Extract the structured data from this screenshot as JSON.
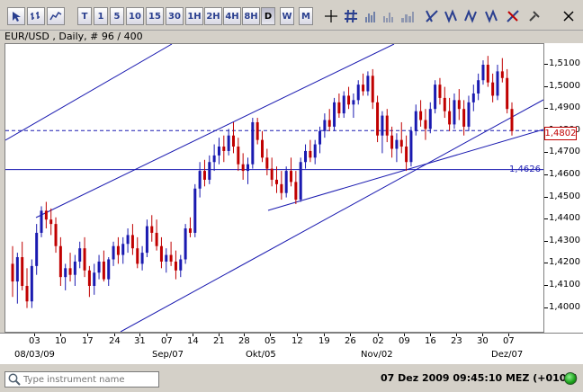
{
  "toolbar": {
    "buttons": [
      {
        "id": "cursor",
        "label": ""
      },
      {
        "id": "bar-chart",
        "label": ""
      },
      {
        "id": "candle-chart",
        "label": ""
      },
      {
        "id": "line-chart",
        "label": ""
      },
      {
        "id": "tick",
        "label": "T"
      },
      {
        "id": "m1",
        "label": "1"
      },
      {
        "id": "m5",
        "label": "5"
      },
      {
        "id": "m10",
        "label": "10"
      },
      {
        "id": "m15",
        "label": "15"
      },
      {
        "id": "m30",
        "label": "30"
      },
      {
        "id": "h1",
        "label": "1H"
      },
      {
        "id": "h2",
        "label": "2H"
      },
      {
        "id": "h4",
        "label": "4H"
      },
      {
        "id": "h8",
        "label": "8H"
      },
      {
        "id": "daily",
        "label": "D"
      },
      {
        "id": "weekly",
        "label": "W"
      },
      {
        "id": "monthly",
        "label": "M"
      }
    ]
  },
  "chart_title": "EUR/USD , Daily, # 96 / 400",
  "chart_data": {
    "type": "candlestick",
    "symbol": "EUR/USD",
    "ylim": [
      1.395,
      1.52
    ],
    "yticks": [
      "1,5100",
      "1,5000",
      "1,4900",
      "1,4800",
      "1,4700",
      "1,4600",
      "1,4500",
      "1,4400",
      "1,4300",
      "1,4200",
      "1,4100",
      "1,4000"
    ],
    "ytick_values": [
      1.51,
      1.5,
      1.49,
      1.48,
      1.47,
      1.46,
      1.45,
      1.44,
      1.43,
      1.42,
      1.41,
      1.4
    ],
    "xticks_top": [
      "03",
      "10",
      "17",
      "24",
      "31",
      "07",
      "14",
      "21",
      "28",
      "05",
      "12",
      "19",
      "26",
      "02",
      "09",
      "16",
      "23",
      "30",
      "07"
    ],
    "xticks_bottom": [
      "08/03/09",
      "Sep/07",
      "Okt/05",
      "Nov/02",
      "Dez/07"
    ],
    "current_price": "1,4802",
    "current_price_value": 1.4802,
    "horizontal_line_label": "1,4626",
    "horizontal_line_value": 1.4626,
    "candles": [
      [
        1.42,
        1.428,
        1.405,
        1.412
      ],
      [
        1.412,
        1.425,
        1.402,
        1.423
      ],
      [
        1.423,
        1.43,
        1.408,
        1.41
      ],
      [
        1.41,
        1.418,
        1.4,
        1.403
      ],
      [
        1.403,
        1.422,
        1.4,
        1.419
      ],
      [
        1.419,
        1.438,
        1.415,
        1.434
      ],
      [
        1.434,
        1.446,
        1.432,
        1.444
      ],
      [
        1.444,
        1.448,
        1.436,
        1.44
      ],
      [
        1.44,
        1.445,
        1.433,
        1.438
      ],
      [
        1.438,
        1.441,
        1.425,
        1.428
      ],
      [
        1.428,
        1.432,
        1.41,
        1.414
      ],
      [
        1.414,
        1.42,
        1.408,
        1.418
      ],
      [
        1.418,
        1.425,
        1.412,
        1.415
      ],
      [
        1.415,
        1.424,
        1.41,
        1.421
      ],
      [
        1.421,
        1.43,
        1.418,
        1.427
      ],
      [
        1.427,
        1.432,
        1.414,
        1.417
      ],
      [
        1.417,
        1.419,
        1.405,
        1.41
      ],
      [
        1.41,
        1.42,
        1.406,
        1.416
      ],
      [
        1.416,
        1.424,
        1.413,
        1.421
      ],
      [
        1.421,
        1.426,
        1.412,
        1.413
      ],
      [
        1.413,
        1.423,
        1.41,
        1.422
      ],
      [
        1.422,
        1.43,
        1.419,
        1.428
      ],
      [
        1.428,
        1.432,
        1.42,
        1.424
      ],
      [
        1.424,
        1.432,
        1.42,
        1.429
      ],
      [
        1.429,
        1.436,
        1.425,
        1.433
      ],
      [
        1.433,
        1.438,
        1.424,
        1.427
      ],
      [
        1.427,
        1.432,
        1.418,
        1.42
      ],
      [
        1.42,
        1.428,
        1.417,
        1.425
      ],
      [
        1.425,
        1.44,
        1.423,
        1.437
      ],
      [
        1.437,
        1.442,
        1.43,
        1.434
      ],
      [
        1.434,
        1.44,
        1.426,
        1.428
      ],
      [
        1.428,
        1.432,
        1.418,
        1.421
      ],
      [
        1.421,
        1.427,
        1.416,
        1.424
      ],
      [
        1.424,
        1.43,
        1.419,
        1.421
      ],
      [
        1.421,
        1.426,
        1.413,
        1.417
      ],
      [
        1.417,
        1.424,
        1.414,
        1.422
      ],
      [
        1.422,
        1.438,
        1.42,
        1.436
      ],
      [
        1.436,
        1.441,
        1.432,
        1.434
      ],
      [
        1.434,
        1.456,
        1.432,
        1.454
      ],
      [
        1.454,
        1.466,
        1.45,
        1.462
      ],
      [
        1.462,
        1.467,
        1.455,
        1.458
      ],
      [
        1.458,
        1.469,
        1.456,
        1.466
      ],
      [
        1.466,
        1.474,
        1.462,
        1.469
      ],
      [
        1.469,
        1.477,
        1.465,
        1.473
      ],
      [
        1.473,
        1.478,
        1.466,
        1.471
      ],
      [
        1.471,
        1.481,
        1.469,
        1.478
      ],
      [
        1.478,
        1.484,
        1.47,
        1.473
      ],
      [
        1.473,
        1.477,
        1.462,
        1.465
      ],
      [
        1.465,
        1.47,
        1.458,
        1.462
      ],
      [
        1.462,
        1.468,
        1.456,
        1.465
      ],
      [
        1.465,
        1.486,
        1.463,
        1.484
      ],
      [
        1.484,
        1.486,
        1.474,
        1.476
      ],
      [
        1.476,
        1.48,
        1.466,
        1.468
      ],
      [
        1.468,
        1.472,
        1.46,
        1.463
      ],
      [
        1.463,
        1.468,
        1.455,
        1.458
      ],
      [
        1.458,
        1.464,
        1.452,
        1.456
      ],
      [
        1.456,
        1.462,
        1.449,
        1.452
      ],
      [
        1.452,
        1.464,
        1.45,
        1.462
      ],
      [
        1.462,
        1.468,
        1.455,
        1.457
      ],
      [
        1.457,
        1.462,
        1.447,
        1.449
      ],
      [
        1.449,
        1.468,
        1.448,
        1.466
      ],
      [
        1.466,
        1.474,
        1.463,
        1.471
      ],
      [
        1.471,
        1.476,
        1.466,
        1.468
      ],
      [
        1.468,
        1.476,
        1.465,
        1.474
      ],
      [
        1.474,
        1.482,
        1.47,
        1.48
      ],
      [
        1.48,
        1.488,
        1.477,
        1.485
      ],
      [
        1.485,
        1.49,
        1.48,
        1.482
      ],
      [
        1.482,
        1.495,
        1.48,
        1.493
      ],
      [
        1.493,
        1.497,
        1.486,
        1.488
      ],
      [
        1.488,
        1.498,
        1.486,
        1.496
      ],
      [
        1.496,
        1.5,
        1.49,
        1.492
      ],
      [
        1.492,
        1.497,
        1.486,
        1.494
      ],
      [
        1.494,
        1.503,
        1.492,
        1.501
      ],
      [
        1.501,
        1.506,
        1.496,
        1.498
      ],
      [
        1.498,
        1.507,
        1.496,
        1.505
      ],
      [
        1.505,
        1.508,
        1.49,
        1.493
      ],
      [
        1.493,
        1.496,
        1.475,
        1.478
      ],
      [
        1.478,
        1.489,
        1.47,
        1.487
      ],
      [
        1.487,
        1.49,
        1.475,
        1.478
      ],
      [
        1.478,
        1.482,
        1.468,
        1.472
      ],
      [
        1.472,
        1.479,
        1.466,
        1.476
      ],
      [
        1.476,
        1.484,
        1.47,
        1.473
      ],
      [
        1.473,
        1.478,
        1.462,
        1.466
      ],
      [
        1.466,
        1.482,
        1.464,
        1.48
      ],
      [
        1.48,
        1.492,
        1.478,
        1.489
      ],
      [
        1.489,
        1.494,
        1.482,
        1.485
      ],
      [
        1.485,
        1.49,
        1.476,
        1.481
      ],
      [
        1.481,
        1.493,
        1.479,
        1.49
      ],
      [
        1.49,
        1.503,
        1.488,
        1.501
      ],
      [
        1.501,
        1.504,
        1.492,
        1.495
      ],
      [
        1.495,
        1.5,
        1.486,
        1.489
      ],
      [
        1.489,
        1.495,
        1.48,
        1.483
      ],
      [
        1.483,
        1.497,
        1.481,
        1.494
      ],
      [
        1.494,
        1.499,
        1.485,
        1.49
      ],
      [
        1.49,
        1.494,
        1.478,
        1.482
      ],
      [
        1.482,
        1.496,
        1.48,
        1.493
      ],
      [
        1.493,
        1.501,
        1.489,
        1.497
      ],
      [
        1.497,
        1.506,
        1.494,
        1.503
      ],
      [
        1.503,
        1.512,
        1.501,
        1.51
      ],
      [
        1.51,
        1.514,
        1.5,
        1.502
      ],
      [
        1.502,
        1.506,
        1.493,
        1.496
      ],
      [
        1.496,
        1.51,
        1.494,
        1.507
      ],
      [
        1.507,
        1.513,
        1.502,
        1.504
      ],
      [
        1.504,
        1.508,
        1.488,
        1.49
      ],
      [
        1.49,
        1.493,
        1.478,
        1.48
      ]
    ]
  },
  "statusbar": {
    "search_placeholder": "Type instrument name",
    "datetime": "07 Dez 2009 09:45:10  MEZ (+0100)",
    "connection": "connected"
  },
  "colors": {
    "bull": "#1a1ab0",
    "bear": "#c00000",
    "trend": "#1a1ab0",
    "price_line": "#1a1ab0"
  }
}
